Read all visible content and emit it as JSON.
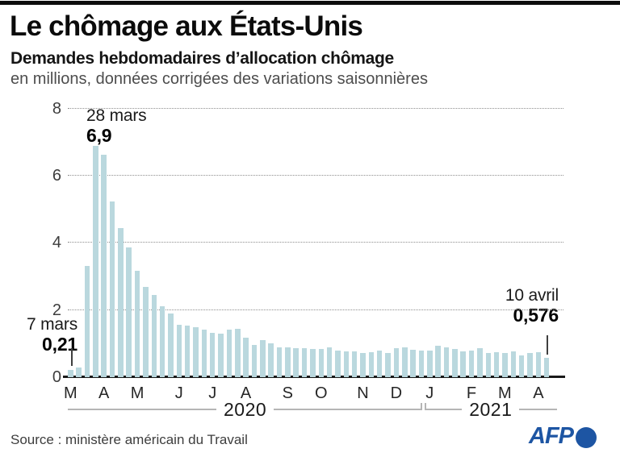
{
  "header": {
    "title": "Le chômage aux États-Unis",
    "subtitle": "Demandes hebdomadaires d’allocation chômage",
    "unit_note": "en millions, données corrigées des variations saisonnières"
  },
  "chart_data": {
    "type": "bar",
    "title": "Demandes hebdomadaires d’allocation chômage",
    "ylabel": "en millions, données corrigées des variations saisonnières",
    "ylim": [
      0,
      8
    ],
    "yticks": [
      0,
      2,
      4,
      6,
      8
    ],
    "grid": "dotted-horizontal",
    "bar_color": "#bad8de",
    "x_description": "semaines du 7 mars 2020 au 10 avril 2021",
    "values": [
      0.211,
      0.282,
      3.307,
      6.9,
      6.615,
      5.237,
      4.442,
      3.867,
      3.176,
      2.687,
      2.446,
      2.123,
      1.897,
      1.566,
      1.54,
      1.482,
      1.408,
      1.314,
      1.3,
      1.416,
      1.434,
      1.186,
      0.971,
      1.104,
      1.011,
      0.884,
      0.893,
      0.866,
      0.873,
      0.849,
      0.84,
      0.898,
      0.791,
      0.758,
      0.757,
      0.711,
      0.748,
      0.787,
      0.716,
      0.862,
      0.892,
      0.806,
      0.782,
      0.784,
      0.926,
      0.9,
      0.847,
      0.779,
      0.793,
      0.861,
      0.73,
      0.745,
      0.712,
      0.77,
      0.658,
      0.719,
      0.744,
      0.576
    ],
    "x_month_labels": [
      {
        "label": "M",
        "index": 0
      },
      {
        "label": "A",
        "index": 4
      },
      {
        "label": "M",
        "index": 8
      },
      {
        "label": "J",
        "index": 13
      },
      {
        "label": "J",
        "index": 17
      },
      {
        "label": "A",
        "index": 21
      },
      {
        "label": "S",
        "index": 26
      },
      {
        "label": "O",
        "index": 30
      },
      {
        "label": "N",
        "index": 35
      },
      {
        "label": "D",
        "index": 39
      },
      {
        "label": "J",
        "index": 43
      },
      {
        "label": "F",
        "index": 48
      },
      {
        "label": "M",
        "index": 52
      },
      {
        "label": "A",
        "index": 56
      }
    ],
    "year_groups": [
      {
        "label": "2020",
        "from_index": 0,
        "to_index": 42
      },
      {
        "label": "2021",
        "from_index": 43,
        "to_index": 57
      }
    ],
    "annotations": [
      {
        "date_label": "7 mars",
        "value_label": "0,21",
        "index": 0
      },
      {
        "date_label": "28 mars",
        "value_label": "6,9",
        "index": 3
      },
      {
        "date_label": "10 avril",
        "value_label": "0,576",
        "index": 57
      }
    ]
  },
  "footer": {
    "source": "Source : ministère américain du Travail",
    "logo_text": "AFP"
  },
  "colors": {
    "bar": "#bad8de",
    "axis": "#1a1a1a",
    "gridline": "#8f8f8f",
    "bracket": "#b5b5b5",
    "afp_blue": "#1d55a3"
  }
}
